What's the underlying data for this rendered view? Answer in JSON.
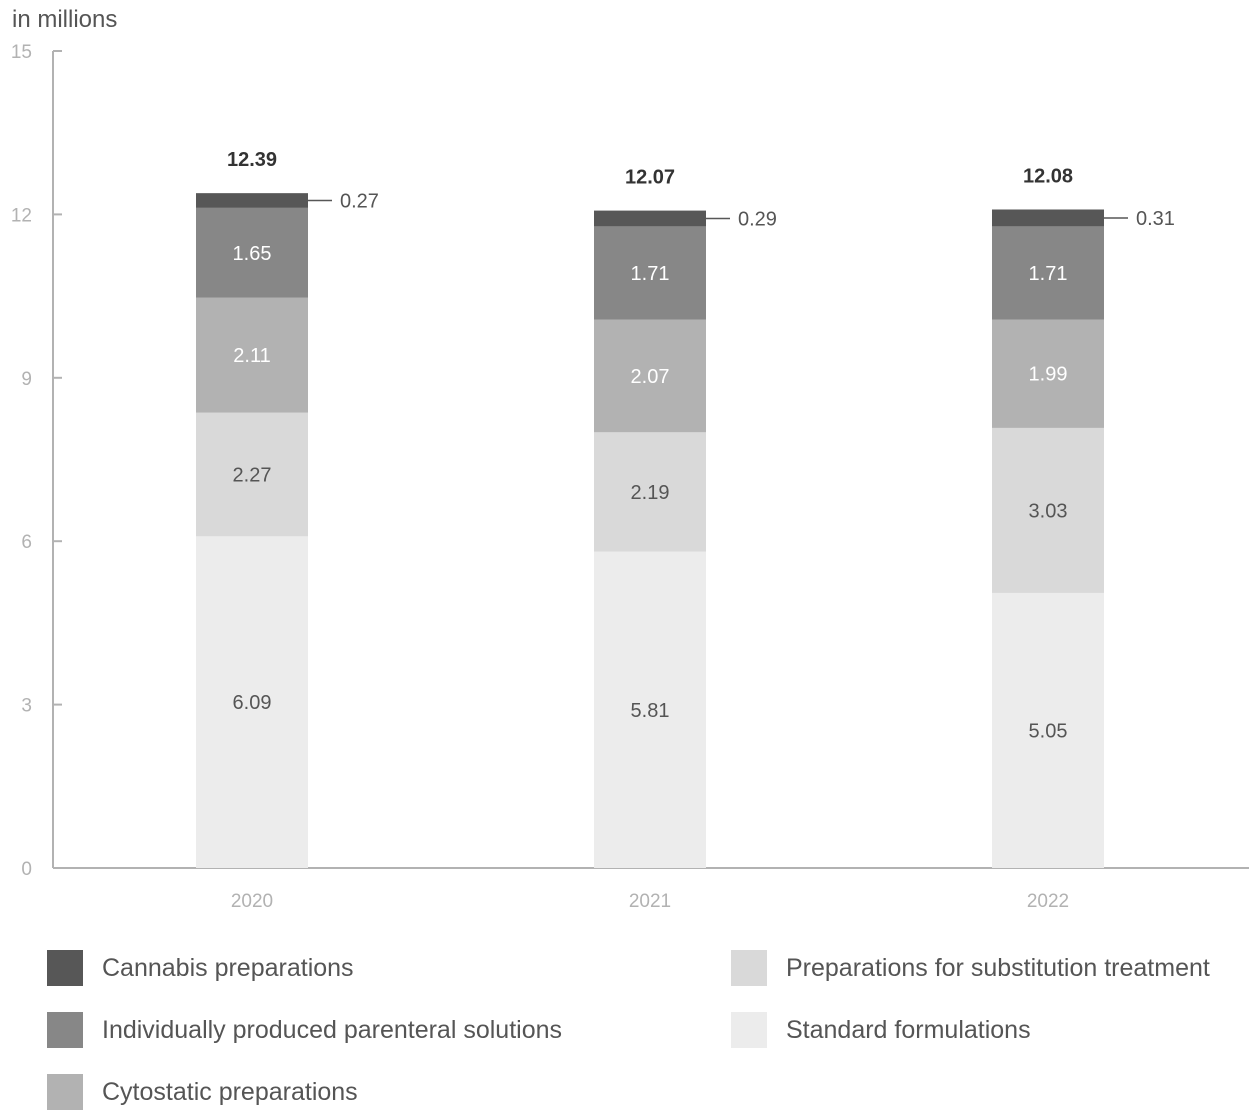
{
  "unit_label": "in millions",
  "chart_data": {
    "type": "bar",
    "stacked": true,
    "categories": [
      "2020",
      "2021",
      "2022"
    ],
    "totals": [
      12.39,
      12.07,
      12.08
    ],
    "ylim": [
      0,
      15
    ],
    "yticks": [
      0,
      3,
      6,
      9,
      12,
      15
    ],
    "grid": false,
    "legend_position": "bottom",
    "series": [
      {
        "name": "Standard formulations",
        "values": [
          6.09,
          5.81,
          5.05
        ],
        "color": "#ececec",
        "label_color": "#555555"
      },
      {
        "name": "Preparations for substitution treatment",
        "values": [
          2.27,
          2.19,
          3.03
        ],
        "color": "#d9d9d9",
        "label_color": "#555555"
      },
      {
        "name": "Cytostatic preparations",
        "values": [
          2.11,
          2.07,
          1.99
        ],
        "color": "#b2b2b2",
        "label_color": "#ffffff"
      },
      {
        "name": "Individually produced parenteral solutions",
        "values": [
          1.65,
          1.71,
          1.71
        ],
        "color": "#878787",
        "label_color": "#ffffff"
      },
      {
        "name": "Cannabis preparations",
        "values": [
          0.27,
          0.29,
          0.31
        ],
        "color": "#575757",
        "label_color": "#555555",
        "callout": true
      }
    ]
  },
  "legend": [
    {
      "label": "Cannabis preparations",
      "color": "#575757"
    },
    {
      "label": "Individually produced parenteral solutions",
      "color": "#878787"
    },
    {
      "label": "Cytostatic preparations",
      "color": "#b2b2b2"
    },
    {
      "label": "Preparations for substitution treatment",
      "color": "#d9d9d9"
    },
    {
      "label": "Standard formulations",
      "color": "#ececec"
    }
  ]
}
